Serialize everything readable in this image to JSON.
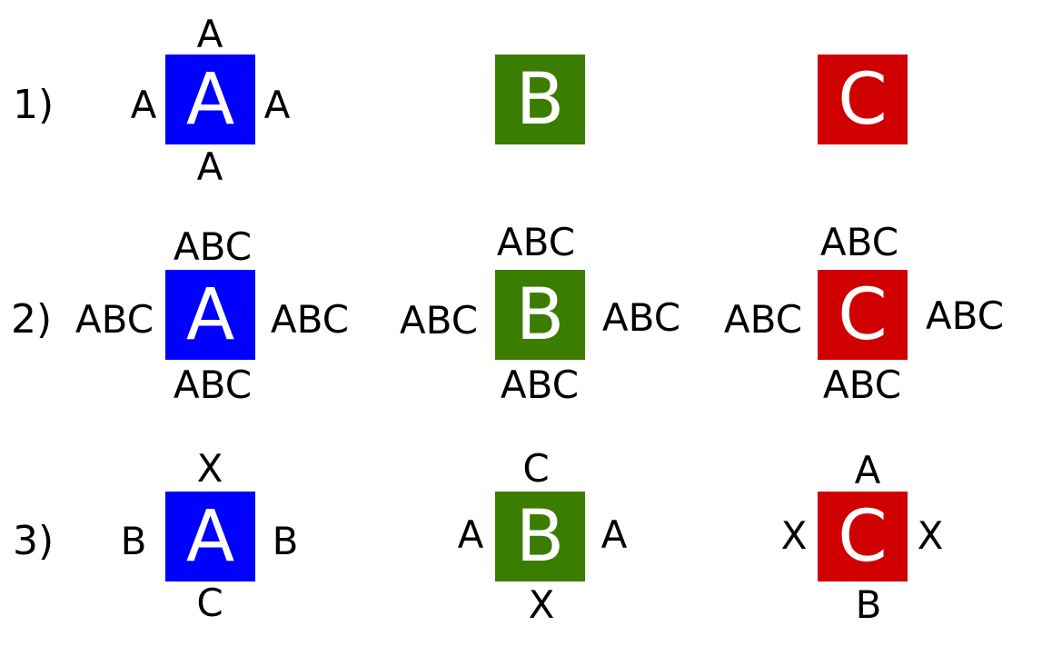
{
  "colors": {
    "A": "#0000ff",
    "B": "#3a7d00",
    "C": "#d10000",
    "tile_text": "#ffffff",
    "edge_text": "#000000",
    "background": "#ffffff"
  },
  "rows": [
    {
      "label": "1)",
      "tiles": [
        {
          "letter": "A",
          "top": "A",
          "left": "A",
          "right": "A",
          "bottom": "A"
        },
        {
          "letter": "B",
          "top": "",
          "left": "",
          "right": "",
          "bottom": ""
        },
        {
          "letter": "C",
          "top": "",
          "left": "",
          "right": "",
          "bottom": ""
        }
      ]
    },
    {
      "label": "2)",
      "tiles": [
        {
          "letter": "A",
          "top": "ABC",
          "left": "ABC",
          "right": "ABC",
          "bottom": "ABC"
        },
        {
          "letter": "B",
          "top": "ABC",
          "left": "ABC",
          "right": "ABC",
          "bottom": "ABC"
        },
        {
          "letter": "C",
          "top": "ABC",
          "left": "ABC",
          "right": "ABC",
          "bottom": "ABC"
        }
      ]
    },
    {
      "label": "3)",
      "tiles": [
        {
          "letter": "A",
          "top": "X",
          "left": "B",
          "right": "B",
          "bottom": "C"
        },
        {
          "letter": "B",
          "top": "C",
          "left": "A",
          "right": "A",
          "bottom": "X"
        },
        {
          "letter": "C",
          "top": "A",
          "left": "X",
          "right": "X",
          "bottom": "B"
        }
      ]
    }
  ]
}
